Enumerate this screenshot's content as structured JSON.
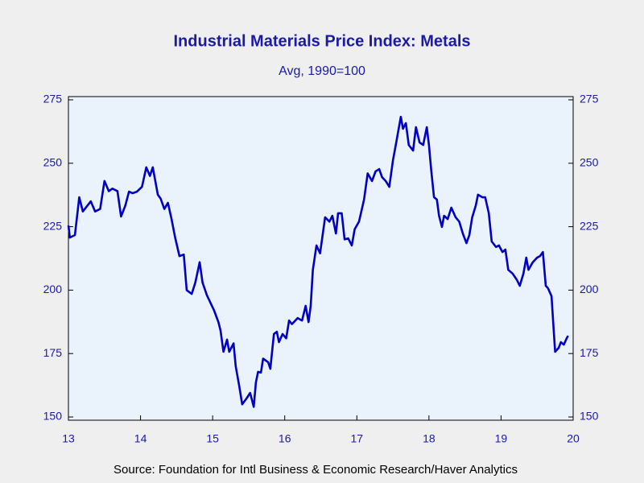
{
  "chart_data": {
    "type": "line",
    "title": "Industrial Materials Price Index: Metals",
    "subtitle": "Avg, 1990=100",
    "source": "Source:  Foundation for Intl Business & Economic Research/Haver Analytics",
    "xlim": [
      2013,
      2020
    ],
    "xticks": [
      {
        "value": 2013,
        "label": "13"
      },
      {
        "value": 2014,
        "label": "14"
      },
      {
        "value": 2015,
        "label": "15"
      },
      {
        "value": 2016,
        "label": "16"
      },
      {
        "value": 2017,
        "label": "17"
      },
      {
        "value": 2018,
        "label": "18"
      },
      {
        "value": 2019,
        "label": "19"
      },
      {
        "value": 2020,
        "label": "20"
      }
    ],
    "ylim": [
      150,
      275
    ],
    "yticks": [
      150,
      175,
      200,
      225,
      250,
      275
    ],
    "y2lim": [
      150,
      275
    ],
    "y2ticks": [
      150,
      175,
      200,
      225,
      250,
      275
    ],
    "x": [
      2013.0,
      2013.02,
      2013.09,
      2013.15,
      2013.2,
      2013.31,
      2013.37,
      2013.44,
      2013.5,
      2013.56,
      2013.61,
      2013.68,
      2013.73,
      2013.79,
      2013.84,
      2013.89,
      2013.95,
      2014.02,
      2014.08,
      2014.13,
      2014.17,
      2014.24,
      2014.28,
      2014.33,
      2014.38,
      2014.43,
      2014.48,
      2014.54,
      2014.6,
      2014.64,
      2014.71,
      2014.76,
      2014.82,
      2014.86,
      2014.92,
      2014.98,
      2015.02,
      2015.08,
      2015.11,
      2015.15,
      2015.2,
      2015.23,
      2015.29,
      2015.32,
      2015.37,
      2015.41,
      2015.47,
      2015.52,
      2015.57,
      2015.6,
      2015.63,
      2015.67,
      2015.7,
      2015.77,
      2015.8,
      2015.85,
      2015.89,
      2015.92,
      2015.97,
      2016.02,
      2016.06,
      2016.1,
      2016.18,
      2016.24,
      2016.29,
      2016.33,
      2016.36,
      2016.39,
      2016.44,
      2016.49,
      2016.56,
      2016.62,
      2016.66,
      2016.71,
      2016.74,
      2016.79,
      2016.83,
      2016.88,
      2016.93,
      2016.97,
      2017.03,
      2017.1,
      2017.15,
      2017.21,
      2017.26,
      2017.31,
      2017.35,
      2017.4,
      2017.45,
      2017.5,
      2017.54,
      2017.58,
      2017.61,
      2017.64,
      2017.68,
      2017.72,
      2017.78,
      2017.82,
      2017.87,
      2017.92,
      2017.97,
      2018.0,
      2018.03,
      2018.07,
      2018.11,
      2018.14,
      2018.18,
      2018.21,
      2018.26,
      2018.31,
      2018.37,
      2018.42,
      2018.47,
      2018.52,
      2018.56,
      2018.6,
      2018.65,
      2018.68,
      2018.74,
      2018.78,
      2018.83,
      2018.87,
      2018.93,
      2018.97,
      2019.02,
      2019.06,
      2019.1,
      2019.16,
      2019.22,
      2019.26,
      2019.31,
      2019.35,
      2019.38,
      2019.44,
      2019.5,
      2019.54,
      2019.58,
      2019.62,
      2019.65,
      2019.7,
      2019.73,
      2019.75,
      2019.8,
      2019.83,
      2019.87,
      2019.91,
      2019.93
    ],
    "series": [
      {
        "color": "#0000c0",
        "values": [
          225.5,
          220.7,
          221.7,
          236.6,
          231.0,
          235.0,
          231.0,
          232.0,
          243.0,
          239.0,
          240.0,
          239.0,
          229.0,
          233.4,
          238.8,
          238.2,
          238.8,
          240.7,
          248.4,
          245.0,
          248.4,
          237.6,
          236.0,
          232.0,
          234.4,
          228.0,
          220.7,
          213.4,
          214.0,
          200.0,
          198.5,
          203.0,
          211.0,
          203.0,
          198.0,
          194.4,
          192.0,
          187.4,
          184.0,
          175.7,
          180.5,
          175.7,
          179.0,
          170.0,
          162.0,
          155.0,
          157.3,
          159.5,
          154.0,
          163.6,
          167.8,
          167.5,
          173.0,
          171.6,
          169.0,
          182.7,
          183.6,
          179.5,
          182.7,
          181.0,
          188.0,
          186.6,
          189.0,
          188.0,
          193.8,
          187.4,
          193.8,
          208.0,
          217.6,
          214.5,
          228.7,
          227.0,
          229.3,
          222.3,
          230.3,
          230.3,
          220.0,
          220.4,
          217.6,
          224.0,
          227.0,
          235.7,
          246.0,
          243.0,
          246.8,
          247.7,
          244.5,
          243.0,
          240.7,
          251.0,
          257.2,
          263.6,
          268.3,
          263.6,
          265.8,
          257.2,
          255.0,
          264.2,
          258.2,
          257.2,
          264.2,
          257.2,
          247.7,
          236.6,
          235.7,
          229.3,
          224.9,
          229.3,
          228.0,
          232.5,
          228.7,
          227.0,
          222.3,
          218.5,
          221.7,
          228.7,
          233.4,
          237.6,
          236.6,
          236.6,
          230.3,
          219.2,
          217.0,
          217.6,
          215.0,
          216.0,
          208.0,
          206.5,
          204.0,
          201.7,
          206.5,
          212.8,
          208.0,
          211.0,
          212.8,
          213.4,
          215.0,
          201.7,
          200.8,
          197.6,
          184.3,
          175.7,
          177.3,
          179.5,
          178.5,
          181.0,
          182.0
        ]
      }
    ]
  }
}
